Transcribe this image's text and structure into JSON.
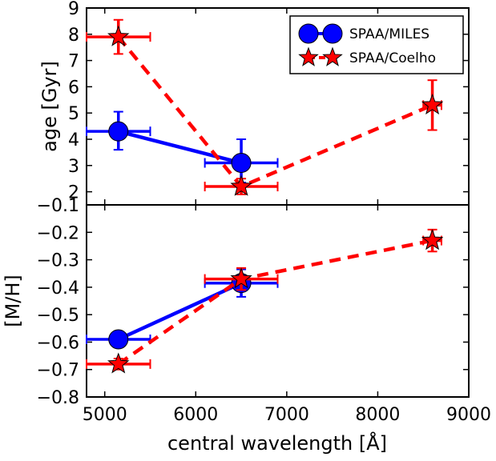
{
  "chart_data": [
    {
      "type": "line",
      "panel": "top",
      "xlim": [
        4800,
        9000
      ],
      "ylim": [
        1.5,
        9
      ],
      "ylabel": "age [Gyr]",
      "yticks": [
        2,
        3,
        4,
        5,
        6,
        7,
        8,
        9
      ],
      "ytick_labels": [
        "2",
        "3",
        "4",
        "5",
        "6",
        "7",
        "8",
        "9"
      ],
      "legend": "top-right",
      "series": [
        {
          "name": "SPAA/MILES",
          "color": "#0000ff",
          "marker": "circle",
          "linestyle": "solid",
          "points": [
            {
              "x": 5150,
              "y": 4.3,
              "xerr": 350,
              "yerr_low": 0.7,
              "yerr_high": 0.75
            },
            {
              "x": 6500,
              "y": 3.1,
              "xerr": 400,
              "yerr_low": 0.75,
              "yerr_high": 0.9
            }
          ]
        },
        {
          "name": "SPAA/Coelho",
          "color": "#ff0000",
          "marker": "star",
          "linestyle": "dashed",
          "points": [
            {
              "x": 5150,
              "y": 7.9,
              "xerr": 350,
              "yerr_low": 0.65,
              "yerr_high": 0.65
            },
            {
              "x": 6500,
              "y": 2.2,
              "xerr": 400,
              "yerr_low": 0.3,
              "yerr_high": 0.3
            },
            {
              "x": 8600,
              "y": 5.3,
              "xerr": 100,
              "yerr_low": 0.95,
              "yerr_high": 0.95
            }
          ]
        }
      ]
    },
    {
      "type": "line",
      "panel": "bottom",
      "xlim": [
        4800,
        9000
      ],
      "ylim": [
        -0.8,
        -0.1
      ],
      "xlabel": "central wavelength [Å]",
      "ylabel": "[M/H]",
      "xticks": [
        5000,
        6000,
        7000,
        8000,
        9000
      ],
      "xtick_labels": [
        "5000",
        "6000",
        "7000",
        "8000",
        "9000"
      ],
      "yticks": [
        -0.8,
        -0.7,
        -0.6,
        -0.5,
        -0.4,
        -0.3,
        -0.2,
        -0.1
      ],
      "ytick_labels": [
        "−0.8",
        "−0.7",
        "−0.6",
        "−0.5",
        "−0.4",
        "−0.3",
        "−0.2",
        "−0.1"
      ],
      "series": [
        {
          "name": "SPAA/MILES",
          "color": "#0000ff",
          "marker": "circle",
          "linestyle": "solid",
          "points": [
            {
              "x": 5150,
              "y": -0.59,
              "xerr": 350,
              "yerr_low": 0.0,
              "yerr_high": 0.0
            },
            {
              "x": 6500,
              "y": -0.385,
              "xerr": 400,
              "yerr_low": 0.05,
              "yerr_high": 0.05
            }
          ]
        },
        {
          "name": "SPAA/Coelho",
          "color": "#ff0000",
          "marker": "star",
          "linestyle": "dashed",
          "points": [
            {
              "x": 5150,
              "y": -0.68,
              "xerr": 350,
              "yerr_low": 0.02,
              "yerr_high": 0.02
            },
            {
              "x": 6500,
              "y": -0.37,
              "xerr": 400,
              "yerr_low": 0.04,
              "yerr_high": 0.04
            },
            {
              "x": 8600,
              "y": -0.23,
              "xerr": 100,
              "yerr_low": 0.04,
              "yerr_high": 0.04
            }
          ]
        }
      ]
    }
  ]
}
